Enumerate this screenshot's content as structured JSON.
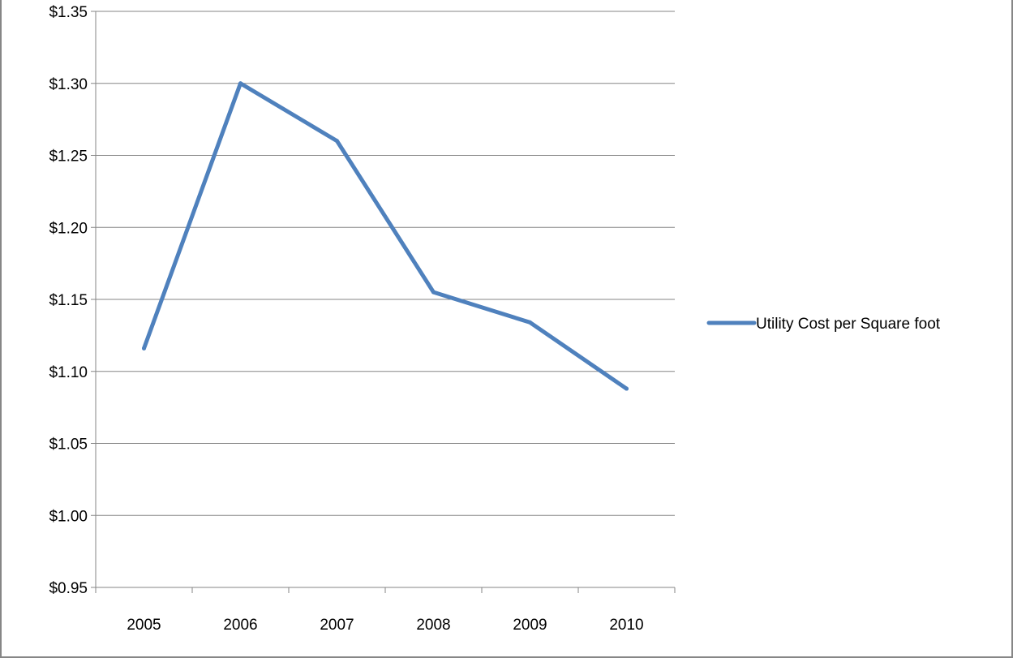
{
  "chart_data": {
    "type": "line",
    "title": "",
    "xlabel": "",
    "ylabel": "",
    "categories": [
      "2005",
      "2006",
      "2007",
      "2008",
      "2009",
      "2010"
    ],
    "series": [
      {
        "name": "Utility Cost per Square foot",
        "values": [
          1.116,
          1.3,
          1.26,
          1.155,
          1.134,
          1.088
        ],
        "color": "#4f81bd"
      }
    ],
    "ylim": [
      0.95,
      1.35
    ],
    "yticks": [
      0.95,
      1.0,
      1.05,
      1.1,
      1.15,
      1.2,
      1.25,
      1.3,
      1.35
    ],
    "ytick_labels": [
      "$0.95",
      "$1.00",
      "$1.05",
      "$1.10",
      "$1.15",
      "$1.20",
      "$1.25",
      "$1.30",
      "$1.35"
    ],
    "grid": true,
    "legend_position": "right",
    "colors": {
      "grid": "#868686",
      "axis": "#868686",
      "line": "#4f81bd"
    }
  }
}
